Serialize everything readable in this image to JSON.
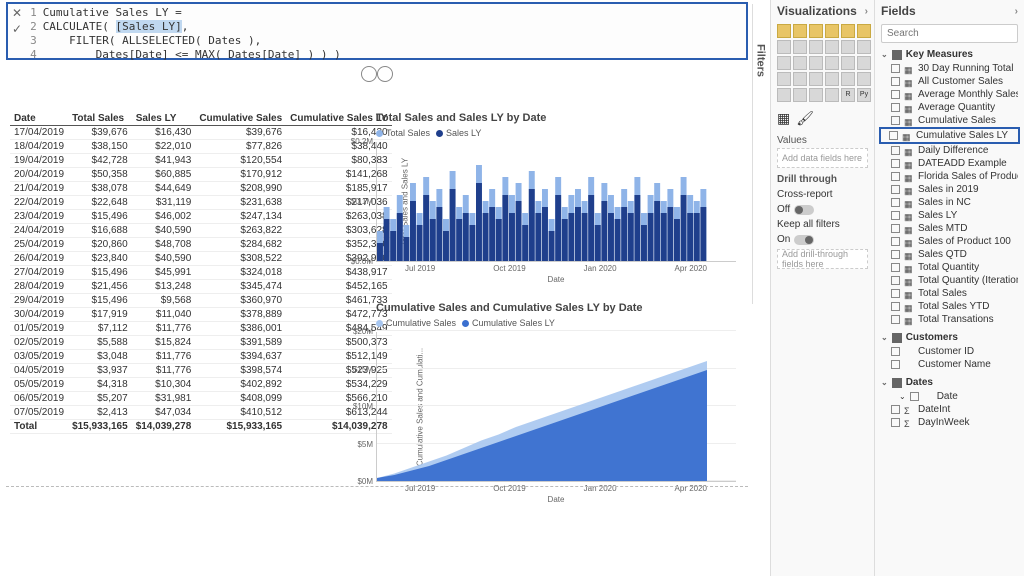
{
  "formula": {
    "lines": [
      {
        "n": "1",
        "text": "Cumulative Sales LY ="
      },
      {
        "n": "2",
        "text_a": "CALCULATE( ",
        "hl": "[Sales LY]",
        "text_b": ","
      },
      {
        "n": "3",
        "text": "    FILTER( ALLSELECTED( Dates ),"
      },
      {
        "n": "4",
        "text": "        Dates[Date] <= MAX( Dates[Date] ) ) )"
      }
    ]
  },
  "table": {
    "headers": [
      "Date",
      "Total Sales",
      "Sales LY",
      "Cumulative Sales",
      "Cumulative Sales LY"
    ],
    "rows": [
      [
        "17/04/2019",
        "$39,676",
        "$16,430",
        "$39,676",
        "$16,430"
      ],
      [
        "18/04/2019",
        "$38,150",
        "$22,010",
        "$77,826",
        "$38,440"
      ],
      [
        "19/04/2019",
        "$42,728",
        "$41,943",
        "$120,554",
        "$80,383"
      ],
      [
        "20/04/2019",
        "$50,358",
        "$60,885",
        "$170,912",
        "$141,268"
      ],
      [
        "21/04/2019",
        "$38,078",
        "$44,649",
        "$208,990",
        "$185,917"
      ],
      [
        "22/04/2019",
        "$22,648",
        "$31,119",
        "$231,638",
        "$217,036"
      ],
      [
        "23/04/2019",
        "$15,496",
        "$46,002",
        "$247,134",
        "$263,038"
      ],
      [
        "24/04/2019",
        "$16,688",
        "$40,590",
        "$263,822",
        "$303,628"
      ],
      [
        "25/04/2019",
        "$20,860",
        "$48,708",
        "$284,682",
        "$352,336"
      ],
      [
        "26/04/2019",
        "$23,840",
        "$40,590",
        "$308,522",
        "$392,926"
      ],
      [
        "27/04/2019",
        "$15,496",
        "$45,991",
        "$324,018",
        "$438,917"
      ],
      [
        "28/04/2019",
        "$21,456",
        "$13,248",
        "$345,474",
        "$452,165"
      ],
      [
        "29/04/2019",
        "$15,496",
        "$9,568",
        "$360,970",
        "$461,733"
      ],
      [
        "30/04/2019",
        "$17,919",
        "$11,040",
        "$378,889",
        "$472,773"
      ],
      [
        "01/05/2019",
        "$7,112",
        "$11,776",
        "$386,001",
        "$484,549"
      ],
      [
        "02/05/2019",
        "$5,588",
        "$15,824",
        "$391,589",
        "$500,373"
      ],
      [
        "03/05/2019",
        "$3,048",
        "$11,776",
        "$394,637",
        "$512,149"
      ],
      [
        "04/05/2019",
        "$3,937",
        "$11,776",
        "$398,574",
        "$523,925"
      ],
      [
        "05/05/2019",
        "$4,318",
        "$10,304",
        "$402,892",
        "$534,229"
      ],
      [
        "06/05/2019",
        "$5,207",
        "$31,981",
        "$408,099",
        "$566,210"
      ],
      [
        "07/05/2019",
        "$2,413",
        "$47,034",
        "$410,512",
        "$613,244"
      ]
    ],
    "total": [
      "Total",
      "$15,933,165",
      "$14,039,278",
      "$15,933,165",
      "$14,039,278"
    ]
  },
  "chart1": {
    "title": "Total Sales and Sales LY by Date",
    "legend": [
      {
        "label": "Total Sales",
        "color": "#8fb4e8"
      },
      {
        "label": "Sales LY",
        "color": "#1f3f8c"
      }
    ],
    "ylabel": "Total Sales and Sales LY",
    "yticks": [
      {
        "v": 0,
        "l": "$0.0M"
      },
      {
        "v": 0.5,
        "l": "$0.1M"
      },
      {
        "v": 1,
        "l": "$0.2M"
      }
    ],
    "xticks": [
      "Jul 2019",
      "Oct 2019",
      "Jan 2020",
      "Apr 2020"
    ],
    "xlabel": "Date",
    "colors": {
      "s1": "#8fb4e8",
      "s2": "#1f3f8c",
      "grid": "#e5e5e5",
      "bg": "#ffffff"
    },
    "s1": [
      0.25,
      0.45,
      0.35,
      0.55,
      0.3,
      0.65,
      0.4,
      0.7,
      0.5,
      0.6,
      0.35,
      0.75,
      0.45,
      0.55,
      0.4,
      0.8,
      0.5,
      0.6,
      0.45,
      0.7,
      0.55,
      0.65,
      0.4,
      0.75,
      0.5,
      0.6,
      0.35,
      0.7,
      0.45,
      0.55,
      0.6,
      0.5,
      0.7,
      0.4,
      0.65,
      0.55,
      0.45,
      0.6,
      0.5,
      0.7,
      0.4,
      0.55,
      0.65,
      0.5,
      0.6,
      0.45,
      0.7,
      0.55,
      0.5,
      0.6
    ],
    "s2": [
      0.15,
      0.35,
      0.25,
      0.4,
      0.2,
      0.5,
      0.3,
      0.55,
      0.35,
      0.45,
      0.25,
      0.6,
      0.35,
      0.4,
      0.3,
      0.65,
      0.4,
      0.45,
      0.35,
      0.55,
      0.4,
      0.5,
      0.3,
      0.6,
      0.4,
      0.45,
      0.25,
      0.55,
      0.35,
      0.4,
      0.45,
      0.4,
      0.55,
      0.3,
      0.5,
      0.4,
      0.35,
      0.45,
      0.4,
      0.55,
      0.3,
      0.4,
      0.5,
      0.4,
      0.45,
      0.35,
      0.55,
      0.4,
      0.4,
      0.45
    ]
  },
  "chart2": {
    "title": "Cumulative Sales and Cumulative Sales LY by Date",
    "legend": [
      {
        "label": "Cumulative Sales",
        "color": "#a7c6f0"
      },
      {
        "label": "Cumulative Sales LY",
        "color": "#3a6fcf"
      }
    ],
    "ylabel": "Cumulative Sales and Cumulati...",
    "yticks": [
      {
        "v": 0,
        "l": "$0M"
      },
      {
        "v": 0.25,
        "l": "$5M"
      },
      {
        "v": 0.5,
        "l": "$10M"
      },
      {
        "v": 0.75,
        "l": "$15M"
      },
      {
        "v": 1,
        "l": "$20M"
      }
    ],
    "xticks": [
      "Jul 2019",
      "Oct 2019",
      "Jan 2020",
      "Apr 2020"
    ],
    "xlabel": "Date",
    "colors": {
      "s1": "#a7c6f0",
      "s2": "#3a6fcf"
    },
    "s1": [
      0.02,
      0.05,
      0.09,
      0.13,
      0.17,
      0.22,
      0.27,
      0.31,
      0.36,
      0.4,
      0.44,
      0.48,
      0.52,
      0.56,
      0.6,
      0.64,
      0.68,
      0.72,
      0.76,
      0.8
    ],
    "s2": [
      0.02,
      0.04,
      0.07,
      0.1,
      0.14,
      0.18,
      0.22,
      0.26,
      0.3,
      0.34,
      0.38,
      0.42,
      0.46,
      0.5,
      0.54,
      0.58,
      0.62,
      0.66,
      0.7,
      0.74
    ]
  },
  "vis": {
    "title": "Visualizations",
    "values_label": "Values",
    "values_placeholder": "Add data fields here",
    "drill_label": "Drill through",
    "cross_report": "Cross-report",
    "off": "Off",
    "keep_filters": "Keep all filters",
    "on": "On",
    "drill_placeholder": "Add drill-through fields here"
  },
  "filters_label": "Filters",
  "fields": {
    "title": "Fields",
    "search_placeholder": "Search",
    "tables": [
      {
        "name": "Key Measures",
        "expanded": true,
        "items": [
          {
            "label": "30 Day Running Total",
            "ico": "calc"
          },
          {
            "label": "All Customer Sales",
            "ico": "calc"
          },
          {
            "label": "Average Monthly Sales",
            "ico": "calc"
          },
          {
            "label": "Average Quantity",
            "ico": "calc"
          },
          {
            "label": "Cumulative Sales",
            "ico": "calc"
          },
          {
            "label": "Cumulative Sales LY",
            "ico": "calc",
            "hl": true
          },
          {
            "label": "Daily Difference",
            "ico": "calc"
          },
          {
            "label": "DATEADD Example",
            "ico": "calc"
          },
          {
            "label": "Florida Sales of Product 2 ...",
            "ico": "calc"
          },
          {
            "label": "Sales in 2019",
            "ico": "calc"
          },
          {
            "label": "Sales in NC",
            "ico": "calc"
          },
          {
            "label": "Sales LY",
            "ico": "calc"
          },
          {
            "label": "Sales MTD",
            "ico": "calc"
          },
          {
            "label": "Sales of Product 100",
            "ico": "calc"
          },
          {
            "label": "Sales QTD",
            "ico": "calc"
          },
          {
            "label": "Total Quantity",
            "ico": "calc"
          },
          {
            "label": "Total Quantity (Iteration)",
            "ico": "calc"
          },
          {
            "label": "Total Sales",
            "ico": "calc"
          },
          {
            "label": "Total Sales YTD",
            "ico": "calc"
          },
          {
            "label": "Total Transations",
            "ico": "calc"
          }
        ]
      },
      {
        "name": "Customers",
        "expanded": true,
        "items": [
          {
            "label": "Customer ID",
            "ico": ""
          },
          {
            "label": "Customer Name",
            "ico": ""
          }
        ]
      },
      {
        "name": "Dates",
        "expanded": true,
        "items": [
          {
            "label": "Date",
            "ico": "",
            "sub": true
          },
          {
            "label": "DateInt",
            "ico": "sig"
          },
          {
            "label": "DayInWeek",
            "ico": "sig"
          }
        ]
      }
    ]
  }
}
